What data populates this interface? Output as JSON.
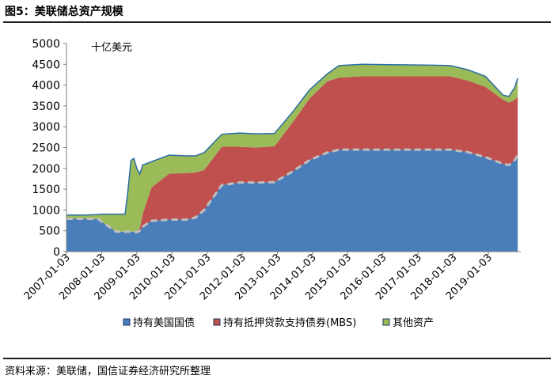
{
  "header": {
    "title": "图5：美联储总资产规模"
  },
  "footer": {
    "source": "资料来源：美联储，国信证券经济研究所整理"
  },
  "colors": {
    "treasuries": "#4a7ebb",
    "mbs": "#c0504d",
    "other": "#9bbb59"
  },
  "chart_data": {
    "type": "area",
    "stacked": true,
    "unit_label": "十亿美元",
    "ylim": [
      0,
      5000
    ],
    "y_ticks": [
      0,
      500,
      1000,
      1500,
      2000,
      2500,
      3000,
      3500,
      4000,
      4500,
      5000
    ],
    "x_ticks": [
      "2007-01-03",
      "2008-01-03",
      "2009-01-03",
      "2010-01-03",
      "2011-01-03",
      "2012-01-03",
      "2013-01-03",
      "2014-01-03",
      "2015-01-03",
      "2016-01-03",
      "2017-01-03",
      "2018-01-03",
      "2019-01-03"
    ],
    "x": [
      "2007-01",
      "2007-07",
      "2007-12",
      "2008-01",
      "2008-06",
      "2008-09",
      "2008-10",
      "2008-11",
      "2008-12",
      "2009-01",
      "2009-02",
      "2009-03",
      "2009-06",
      "2009-12",
      "2010-06",
      "2010-09",
      "2010-12",
      "2011-06",
      "2011-12",
      "2012-06",
      "2012-12",
      "2013-06",
      "2013-12",
      "2014-06",
      "2014-10",
      "2015-06",
      "2016-06",
      "2017-06",
      "2017-12",
      "2018-06",
      "2018-12",
      "2019-06",
      "2019-08",
      "2019-10",
      "2019-11"
    ],
    "series": [
      {
        "name": "持有美国国债",
        "values": [
          790,
          790,
          780,
          720,
          480,
          480,
          480,
          480,
          480,
          470,
          500,
          600,
          740,
          770,
          770,
          820,
          1000,
          1600,
          1660,
          1660,
          1670,
          1920,
          2200,
          2380,
          2450,
          2450,
          2450,
          2450,
          2450,
          2390,
          2270,
          2110,
          2080,
          2200,
          2320
        ]
      },
      {
        "name": "持有抵押贷款支持债券(MBS)",
        "values": [
          0,
          0,
          0,
          0,
          0,
          0,
          0,
          0,
          0,
          10,
          60,
          300,
          800,
          1100,
          1120,
          1080,
          960,
          920,
          860,
          840,
          860,
          1170,
          1480,
          1710,
          1730,
          1760,
          1760,
          1760,
          1760,
          1720,
          1690,
          1540,
          1500,
          1450,
          1400
        ]
      },
      {
        "name": "其他资产",
        "values": [
          90,
          90,
          110,
          180,
          420,
          420,
          1000,
          1710,
          1760,
          1520,
          1300,
          1180,
          620,
          450,
          410,
          400,
          420,
          300,
          330,
          330,
          310,
          250,
          210,
          180,
          290,
          290,
          280,
          270,
          260,
          260,
          250,
          110,
          150,
          300,
          450
        ]
      }
    ]
  },
  "legend": {
    "treasuries": "持有美国国债",
    "mbs": "持有抵押贷款支持债券(MBS)",
    "other": "其他资产"
  }
}
